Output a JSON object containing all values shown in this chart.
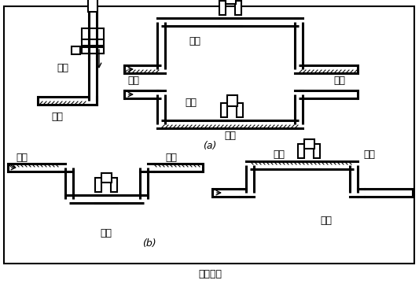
{
  "title": "图（四）",
  "label_a": "(a)",
  "label_b": "(b)",
  "text_correct": "正确",
  "text_wrong": "错误",
  "text_liquid": "液体",
  "text_bubble": "气泡",
  "bg_color": "#ffffff",
  "line_color": "#000000",
  "fig_width": 5.33,
  "fig_height": 3.61,
  "dpi": 100
}
